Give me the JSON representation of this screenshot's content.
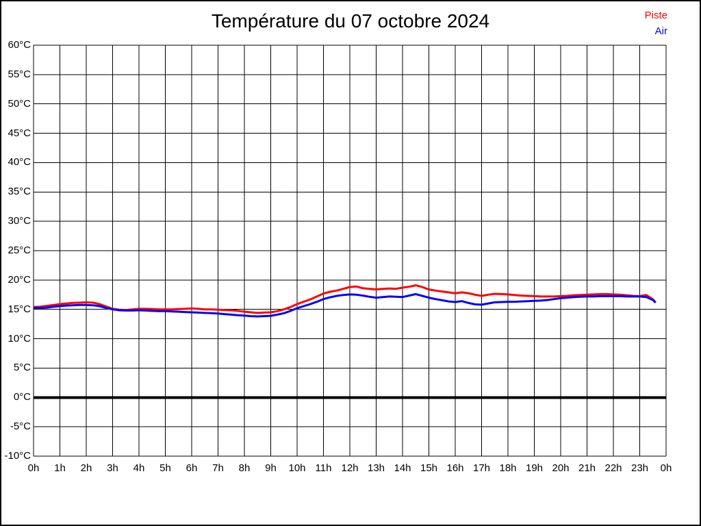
{
  "title": "Température du 07 octobre 2024",
  "legend": [
    {
      "label": "Piste",
      "color": "#ff0000"
    },
    {
      "label": "Air",
      "color": "#0000ff"
    }
  ],
  "chart_data": {
    "type": "line",
    "title": "Température du 07 octobre 2024",
    "xlabel": "",
    "ylabel": "",
    "xlim": [
      0,
      24
    ],
    "ylim": [
      -10,
      60
    ],
    "y_step": 5,
    "grid": true,
    "zero_line_value": 0,
    "legend_position": "top-right",
    "x_ticks": [
      "0h",
      "1h",
      "2h",
      "3h",
      "4h",
      "5h",
      "6h",
      "7h",
      "8h",
      "9h",
      "10h",
      "11h",
      "12h",
      "13h",
      "14h",
      "15h",
      "16h",
      "17h",
      "18h",
      "19h",
      "20h",
      "21h",
      "22h",
      "23h",
      "0h"
    ],
    "y_ticks": [
      "60°C",
      "55°C",
      "50°C",
      "45°C",
      "40°C",
      "35°C",
      "30°C",
      "25°C",
      "20°C",
      "15°C",
      "10°C",
      "5°C",
      "0°C",
      "-5°C",
      "-10°C"
    ],
    "x_unit_hours": [
      0,
      0.25,
      0.5,
      0.75,
      1,
      1.25,
      1.5,
      1.75,
      2,
      2.25,
      2.5,
      2.75,
      3,
      3.25,
      3.5,
      3.75,
      4,
      4.25,
      4.5,
      4.75,
      5,
      5.25,
      5.5,
      5.75,
      6,
      6.25,
      6.5,
      6.75,
      7,
      7.25,
      7.5,
      7.75,
      8,
      8.25,
      8.5,
      8.75,
      9,
      9.25,
      9.5,
      9.75,
      10,
      10.25,
      10.5,
      10.75,
      11,
      11.25,
      11.5,
      11.75,
      12,
      12.25,
      12.5,
      12.75,
      13,
      13.25,
      13.5,
      13.75,
      14,
      14.25,
      14.5,
      14.75,
      15,
      15.25,
      15.5,
      15.75,
      16,
      16.25,
      16.5,
      16.75,
      17,
      17.25,
      17.5,
      17.75,
      18,
      18.25,
      18.5,
      18.75,
      19,
      19.25,
      19.5,
      19.75,
      20,
      20.25,
      20.5,
      20.75,
      21,
      21.25,
      21.5,
      21.75,
      22,
      22.25,
      22.5,
      22.75,
      23,
      23.25,
      23.5,
      23.6
    ],
    "series": [
      {
        "name": "Piste",
        "color": "#ff0000",
        "values": [
          15.4,
          15.45,
          15.6,
          15.75,
          15.9,
          16.0,
          16.1,
          16.15,
          16.2,
          16.15,
          15.9,
          15.5,
          15.1,
          14.95,
          14.9,
          15.0,
          15.1,
          15.1,
          15.05,
          15.0,
          15.0,
          15.0,
          15.05,
          15.1,
          15.15,
          15.1,
          15.0,
          15.0,
          14.95,
          14.9,
          14.85,
          14.75,
          14.6,
          14.5,
          14.4,
          14.45,
          14.5,
          14.7,
          15.0,
          15.4,
          15.9,
          16.3,
          16.7,
          17.2,
          17.7,
          18.0,
          18.2,
          18.5,
          18.8,
          18.9,
          18.6,
          18.5,
          18.4,
          18.5,
          18.55,
          18.5,
          18.7,
          18.85,
          19.1,
          18.8,
          18.4,
          18.2,
          18.05,
          17.9,
          17.75,
          17.9,
          17.75,
          17.5,
          17.3,
          17.5,
          17.65,
          17.6,
          17.55,
          17.45,
          17.35,
          17.3,
          17.25,
          17.2,
          17.2,
          17.2,
          17.25,
          17.3,
          17.4,
          17.45,
          17.5,
          17.55,
          17.6,
          17.6,
          17.55,
          17.5,
          17.4,
          17.3,
          17.25,
          17.45,
          16.7,
          16.2
        ]
      },
      {
        "name": "Air",
        "color": "#0000ff",
        "values": [
          15.25,
          15.25,
          15.3,
          15.45,
          15.55,
          15.65,
          15.7,
          15.75,
          15.75,
          15.7,
          15.55,
          15.25,
          15.0,
          14.85,
          14.8,
          14.8,
          14.85,
          14.8,
          14.75,
          14.7,
          14.7,
          14.65,
          14.6,
          14.55,
          14.5,
          14.45,
          14.4,
          14.35,
          14.3,
          14.2,
          14.1,
          14.0,
          13.95,
          13.85,
          13.8,
          13.85,
          13.9,
          14.1,
          14.35,
          14.75,
          15.2,
          15.55,
          15.9,
          16.3,
          16.75,
          17.05,
          17.3,
          17.45,
          17.55,
          17.5,
          17.35,
          17.15,
          17.0,
          17.1,
          17.2,
          17.15,
          17.1,
          17.35,
          17.6,
          17.3,
          17.0,
          16.75,
          16.55,
          16.35,
          16.25,
          16.4,
          16.1,
          15.85,
          15.8,
          16.0,
          16.2,
          16.25,
          16.3,
          16.3,
          16.35,
          16.4,
          16.45,
          16.5,
          16.6,
          16.75,
          16.9,
          17.0,
          17.1,
          17.15,
          17.2,
          17.2,
          17.25,
          17.25,
          17.25,
          17.25,
          17.2,
          17.2,
          17.2,
          17.1,
          16.6,
          16.15
        ]
      }
    ]
  }
}
